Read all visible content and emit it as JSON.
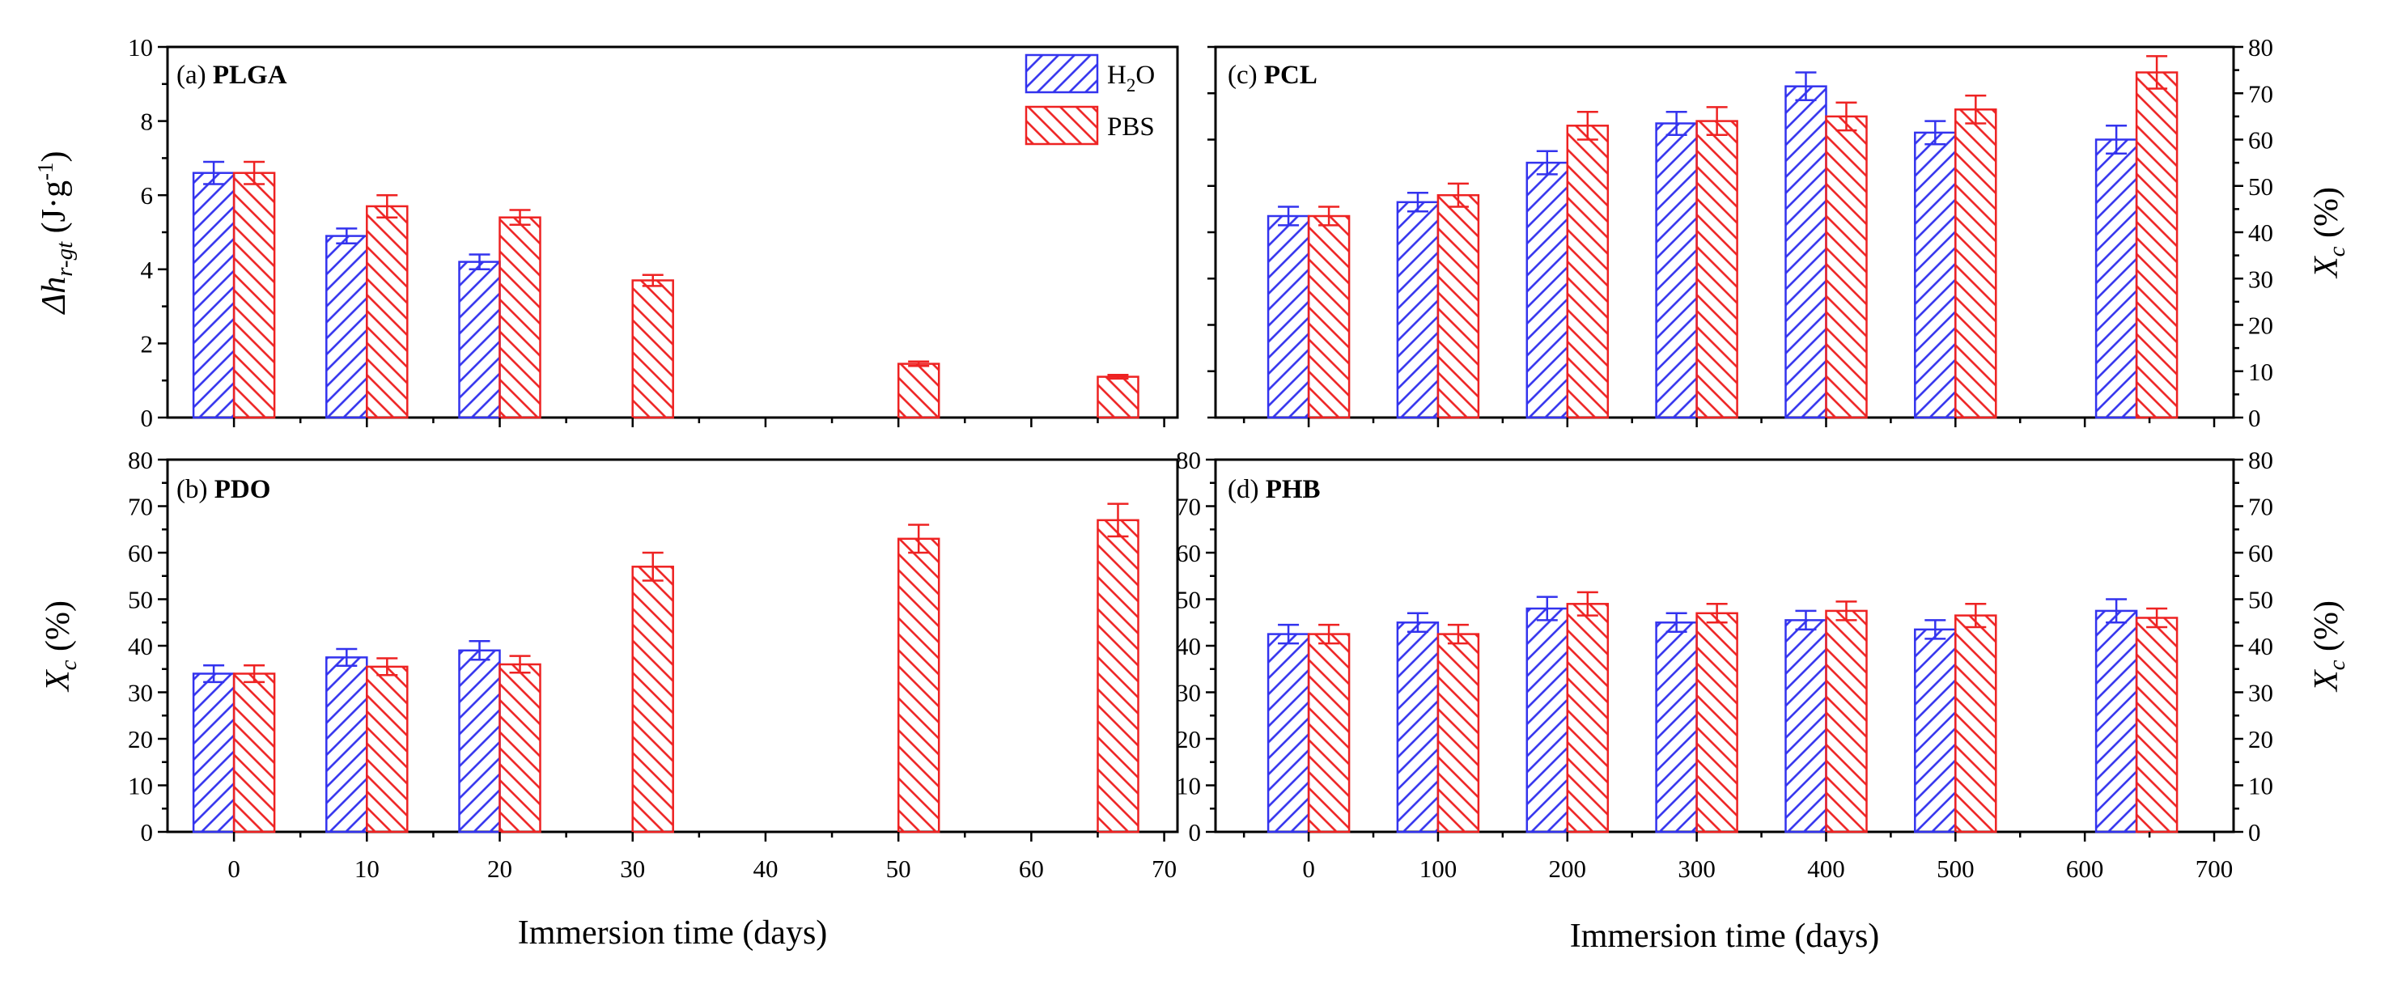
{
  "chart_data": [
    {
      "id": "a",
      "type": "bar",
      "label": "(a)",
      "name": "PLGA",
      "xlim": [
        -5,
        71
      ],
      "xticks": [
        0,
        10,
        20,
        30,
        40,
        50,
        60,
        70
      ],
      "ylim": [
        0,
        10
      ],
      "yticks": [
        0,
        2,
        4,
        6,
        8,
        10
      ],
      "ylabel": "Δh",
      "ylabel_sub": "r-gt",
      "ylabel_unit": "(J·g",
      "ylabel_exp": "-1",
      "ylabel_close": ")",
      "series": [
        {
          "name": "H2O",
          "color": "#3333ee",
          "x": [
            0,
            10,
            20
          ],
          "values": [
            6.6,
            4.9,
            4.2
          ],
          "errors": [
            0.3,
            0.2,
            0.2
          ]
        },
        {
          "name": "PBS",
          "color": "#ee2222",
          "x": [
            0,
            10,
            20,
            30,
            50,
            65
          ],
          "values": [
            6.6,
            5.7,
            5.4,
            3.7,
            1.45,
            1.1
          ],
          "errors": [
            0.3,
            0.3,
            0.2,
            0.15,
            0.06,
            0.05
          ]
        }
      ],
      "legend": {
        "h2o_main": "H",
        "h2o_sub": "2",
        "h2o_tail": "O",
        "pbs": "PBS"
      }
    },
    {
      "id": "b",
      "type": "bar",
      "label": "(b)",
      "name": "PDO",
      "xlim": [
        -5,
        71
      ],
      "xticks": [
        0,
        10,
        20,
        30,
        40,
        50,
        60,
        70
      ],
      "ylim": [
        0,
        80
      ],
      "yticks": [
        0,
        10,
        20,
        30,
        40,
        50,
        60,
        70,
        80
      ],
      "ylabel": "X",
      "ylabel_sub": "c",
      "ylabel_unit": "(%)",
      "xlabel": "Immersion time (days)",
      "series": [
        {
          "name": "H2O",
          "color": "#3333ee",
          "x": [
            0,
            10,
            20
          ],
          "values": [
            34,
            37.5,
            39
          ],
          "errors": [
            1.8,
            1.8,
            2
          ]
        },
        {
          "name": "PBS",
          "color": "#ee2222",
          "x": [
            0,
            10,
            20,
            30,
            50,
            65
          ],
          "values": [
            34,
            35.5,
            36,
            57,
            63,
            67
          ],
          "errors": [
            1.8,
            1.8,
            1.8,
            3,
            3,
            3.5
          ]
        }
      ]
    },
    {
      "id": "c",
      "type": "bar",
      "label": "(c)",
      "name": "PCL",
      "xlim": [
        -72,
        715
      ],
      "xticks": [
        0,
        100,
        200,
        300,
        400,
        500,
        600,
        700
      ],
      "ylim": [
        0,
        80
      ],
      "yticks": [
        0,
        10,
        20,
        30,
        40,
        50,
        60,
        70,
        80
      ],
      "ylabel": "X",
      "ylabel_sub": "c",
      "ylabel_unit": "(%)",
      "series": [
        {
          "name": "H2O",
          "color": "#3333ee",
          "x": [
            0,
            100,
            200,
            300,
            400,
            500,
            640
          ],
          "values": [
            43.5,
            46.5,
            55,
            63.5,
            71.5,
            61.5,
            60
          ],
          "errors": [
            2,
            2,
            2.5,
            2.5,
            3,
            2.5,
            3
          ]
        },
        {
          "name": "PBS",
          "color": "#ee2222",
          "x": [
            0,
            100,
            200,
            300,
            400,
            500,
            640
          ],
          "values": [
            43.5,
            48,
            63,
            64,
            65,
            66.5,
            74.5
          ],
          "errors": [
            2,
            2.5,
            3,
            3,
            3,
            3,
            3.5
          ]
        }
      ]
    },
    {
      "id": "d",
      "type": "bar",
      "label": "(d)",
      "name": "PHB",
      "xlim": [
        -72,
        715
      ],
      "xticks": [
        0,
        100,
        200,
        300,
        400,
        500,
        600,
        700
      ],
      "ylim": [
        0,
        80
      ],
      "yticks": [
        0,
        10,
        20,
        30,
        40,
        50,
        60,
        70,
        80
      ],
      "ylabel": "X",
      "ylabel_sub": "c",
      "ylabel_unit": "(%)",
      "xlabel": "Immersion time (days)",
      "series": [
        {
          "name": "H2O",
          "color": "#3333ee",
          "x": [
            0,
            100,
            200,
            300,
            400,
            500,
            640
          ],
          "values": [
            42.5,
            45,
            48,
            45,
            45.5,
            43.5,
            47.5
          ],
          "errors": [
            2,
            2,
            2.5,
            2,
            2,
            2,
            2.5
          ]
        },
        {
          "name": "PBS",
          "color": "#ee2222",
          "x": [
            0,
            100,
            200,
            300,
            400,
            500,
            640
          ],
          "values": [
            42.5,
            42.5,
            49,
            47,
            47.5,
            46.5,
            46
          ],
          "errors": [
            2,
            2,
            2.5,
            2,
            2,
            2.5,
            2
          ]
        }
      ]
    }
  ]
}
